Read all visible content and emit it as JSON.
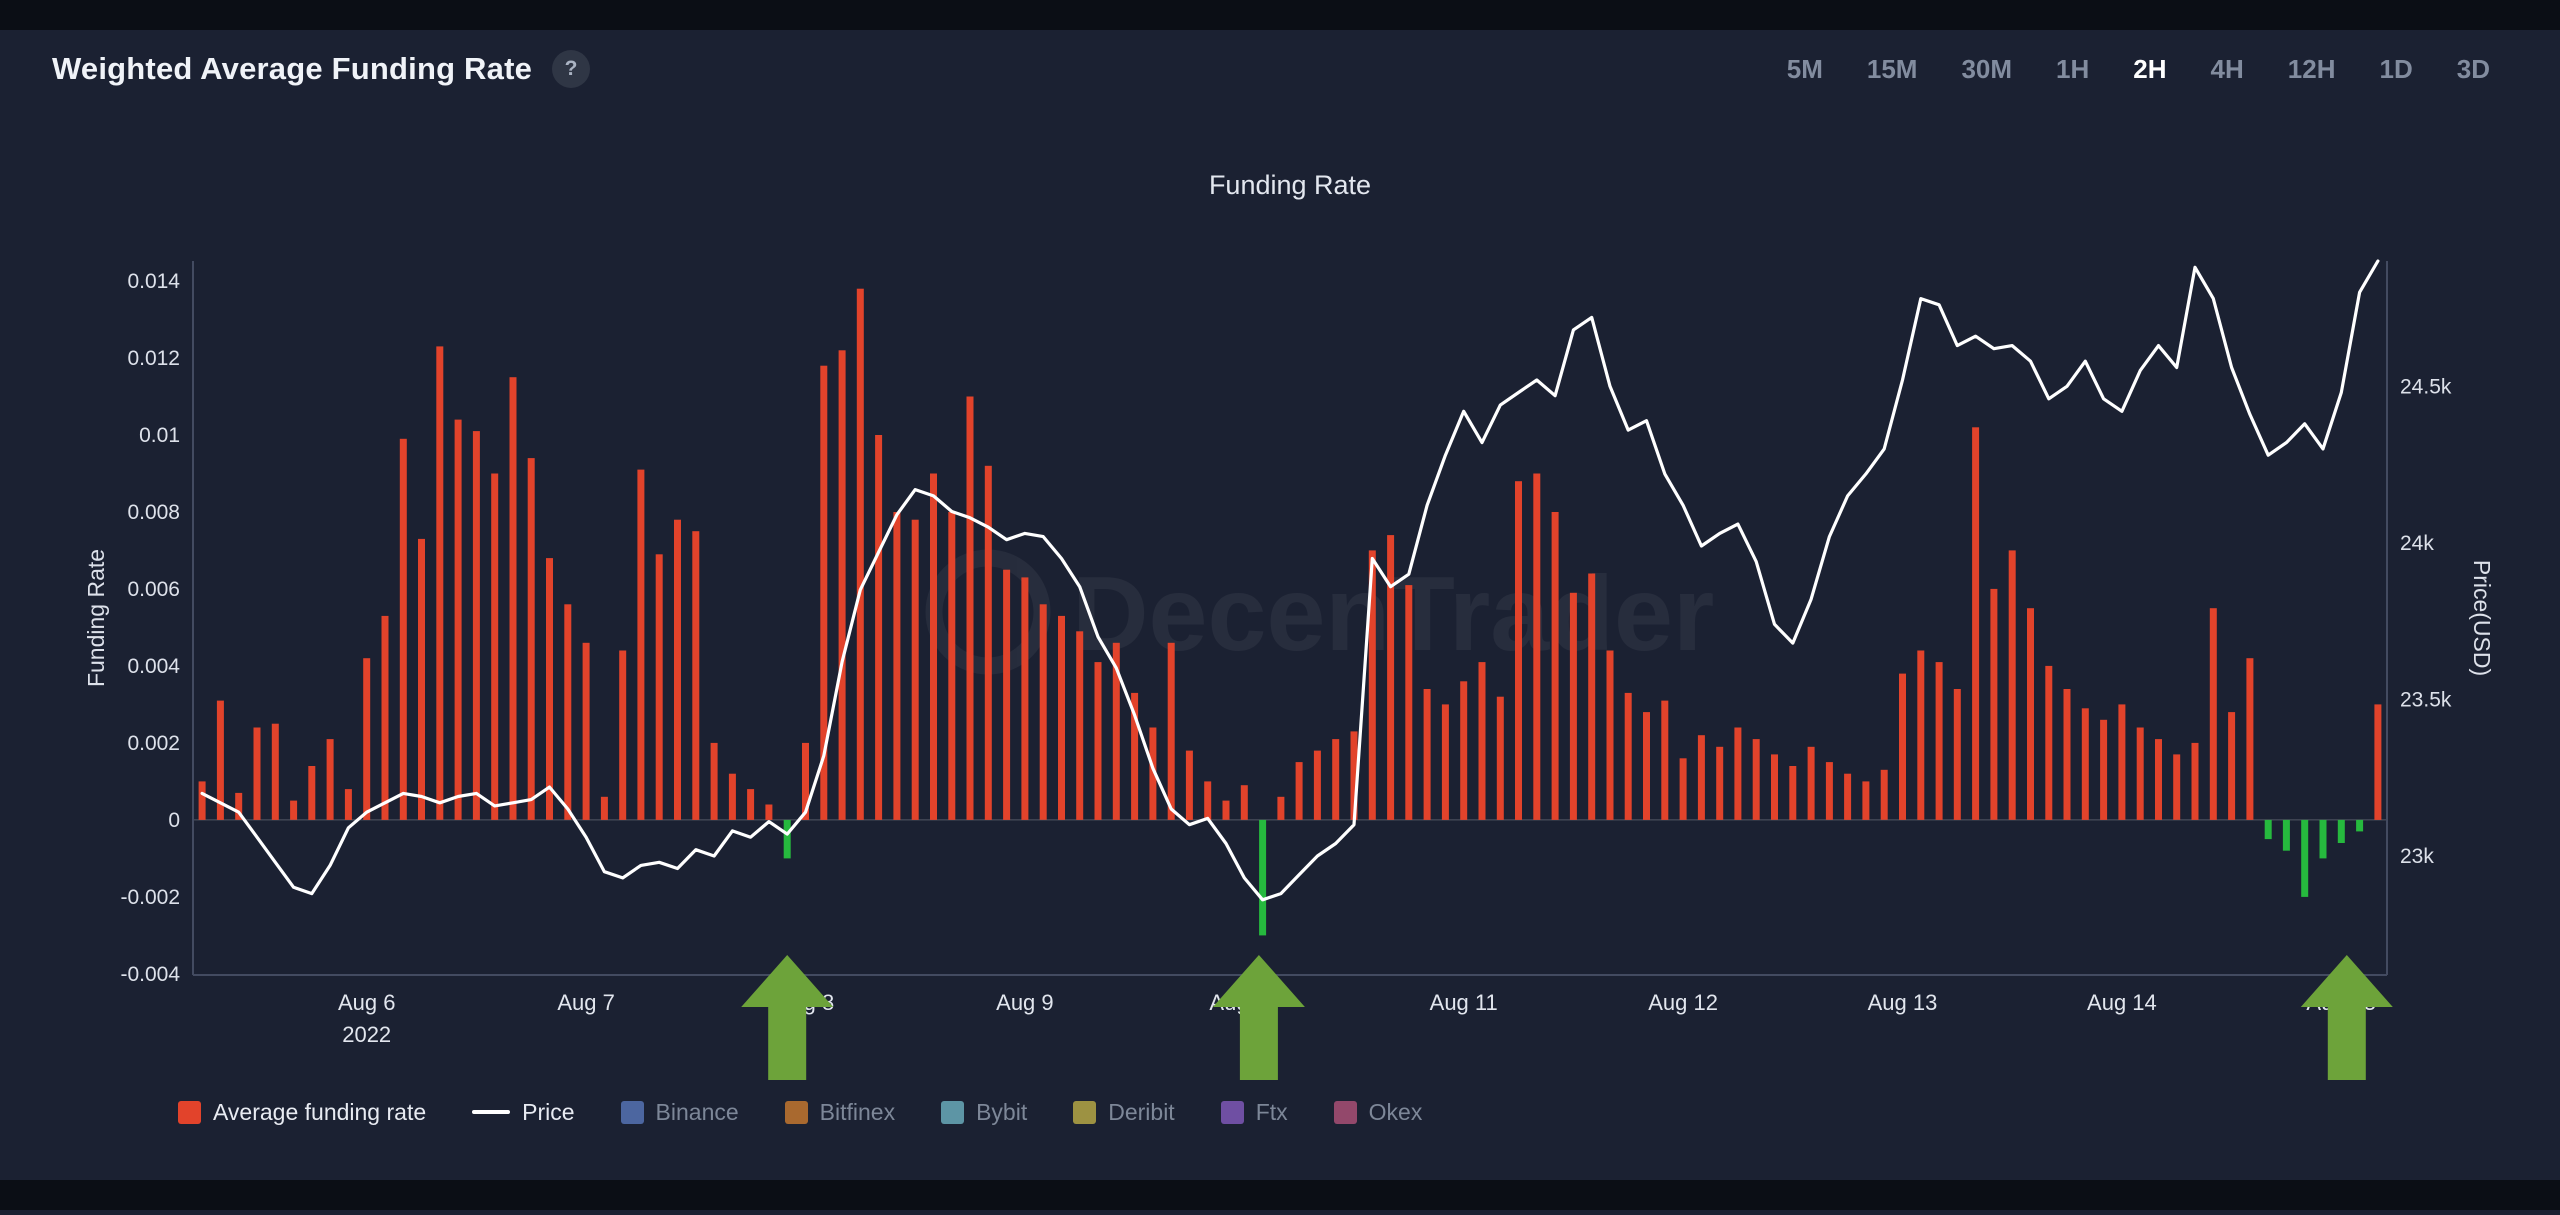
{
  "page": {
    "background": "#1b2132",
    "strip_color": "#0b0e15"
  },
  "header": {
    "title": "Weighted Average Funding Rate",
    "help_label": "?"
  },
  "timeframes": {
    "options": [
      "5M",
      "15M",
      "30M",
      "1H",
      "2H",
      "4H",
      "12H",
      "1D",
      "3D"
    ],
    "active": "2H"
  },
  "chart_data": {
    "type": "bar+line",
    "title": "Funding Rate",
    "watermark": "DecenTrader",
    "interval": "2H",
    "left_axis": {
      "label": "Funding Rate",
      "min": -0.00403,
      "max": 0.01452,
      "ticks": [
        {
          "label": "0.014",
          "value": 0.014
        },
        {
          "label": "0.012",
          "value": 0.012
        },
        {
          "label": "0.01",
          "value": 0.01
        },
        {
          "label": "0.008",
          "value": 0.008
        },
        {
          "label": "0.006",
          "value": 0.006
        },
        {
          "label": "0.004",
          "value": 0.004
        },
        {
          "label": "0.002",
          "value": 0.002
        },
        {
          "label": "0",
          "value": 0
        },
        {
          "label": "-0.002",
          "value": -0.002
        },
        {
          "label": "-0.004",
          "value": -0.004
        }
      ]
    },
    "right_axis": {
      "label": "Price(USD)",
      "min": 22.62,
      "max": 24.9,
      "ticks": [
        {
          "label": "24.5k",
          "value": 24.5
        },
        {
          "label": "24k",
          "value": 24.0
        },
        {
          "label": "23.5k",
          "value": 23.5
        },
        {
          "label": "23k",
          "value": 23.0
        }
      ]
    },
    "x_axis": {
      "day_labels": [
        {
          "label": "Aug 6",
          "sub": "2022",
          "index": 9
        },
        {
          "label": "Aug 7",
          "index": 21
        },
        {
          "label": "Aug 8",
          "index": 33
        },
        {
          "label": "Aug 9",
          "index": 45
        },
        {
          "label": "Aug 10",
          "index": 57
        },
        {
          "label": "Aug 11",
          "index": 69
        },
        {
          "label": "Aug 12",
          "index": 81
        },
        {
          "label": "Aug 13",
          "index": 93
        },
        {
          "label": "Aug 14",
          "index": 105
        },
        {
          "label": "Aug 15",
          "index": 117
        }
      ]
    },
    "funding_series": {
      "name": "Average funding rate",
      "color": "#e2432b",
      "neg_color": "#26b93e",
      "values": [
        0.001,
        0.0031,
        0.0007,
        0.0024,
        0.0025,
        0.0005,
        0.0014,
        0.0021,
        0.0008,
        0.0042,
        0.0053,
        0.0099,
        0.0073,
        0.0123,
        0.0104,
        0.0101,
        0.009,
        0.0115,
        0.0094,
        0.0068,
        0.0056,
        0.0046,
        0.0006,
        0.0044,
        0.0091,
        0.0069,
        0.0078,
        0.0075,
        0.002,
        0.0012,
        0.0008,
        0.0004,
        -0.001,
        0.002,
        0.0118,
        0.0122,
        0.0138,
        0.01,
        0.008,
        0.0078,
        0.009,
        0.008,
        0.011,
        0.0092,
        0.0065,
        0.0063,
        0.0056,
        0.0053,
        0.0049,
        0.0041,
        0.0046,
        0.0033,
        0.0024,
        0.0046,
        0.0018,
        0.001,
        0.0005,
        0.0009,
        -0.003,
        0.0006,
        0.0015,
        0.0018,
        0.0021,
        0.0023,
        0.007,
        0.0074,
        0.0061,
        0.0034,
        0.003,
        0.0036,
        0.0041,
        0.0032,
        0.0088,
        0.009,
        0.008,
        0.0059,
        0.0064,
        0.0044,
        0.0033,
        0.0028,
        0.0031,
        0.0016,
        0.0022,
        0.0019,
        0.0024,
        0.0021,
        0.0017,
        0.0014,
        0.0019,
        0.0015,
        0.0012,
        0.001,
        0.0013,
        0.0038,
        0.0044,
        0.0041,
        0.0034,
        0.0102,
        0.006,
        0.007,
        0.0055,
        0.004,
        0.0034,
        0.0029,
        0.0026,
        0.003,
        0.0024,
        0.0021,
        0.0017,
        0.002,
        0.0055,
        0.0028,
        0.0042,
        -0.0005,
        -0.0008,
        -0.002,
        -0.001,
        -0.0006,
        -0.0003,
        0.003
      ]
    },
    "price_series": {
      "name": "Price",
      "color": "#ffffff",
      "unit": "k USD",
      "values": [
        23.2,
        23.17,
        23.14,
        23.06,
        22.98,
        22.9,
        22.88,
        22.97,
        23.09,
        23.14,
        23.17,
        23.2,
        23.19,
        23.17,
        23.19,
        23.2,
        23.16,
        23.17,
        23.18,
        23.22,
        23.15,
        23.06,
        22.95,
        22.93,
        22.97,
        22.98,
        22.96,
        23.02,
        23.0,
        23.08,
        23.06,
        23.11,
        23.07,
        23.14,
        23.32,
        23.62,
        23.85,
        23.97,
        24.09,
        24.17,
        24.15,
        24.1,
        24.08,
        24.05,
        24.01,
        24.03,
        24.02,
        23.95,
        23.86,
        23.7,
        23.6,
        23.45,
        23.28,
        23.15,
        23.1,
        23.12,
        23.04,
        22.93,
        22.86,
        22.88,
        22.94,
        23.0,
        23.04,
        23.1,
        23.95,
        23.86,
        23.9,
        24.12,
        24.28,
        24.42,
        24.32,
        24.44,
        24.48,
        24.52,
        24.47,
        24.68,
        24.72,
        24.5,
        24.36,
        24.39,
        24.22,
        24.12,
        23.99,
        24.03,
        24.06,
        23.94,
        23.74,
        23.68,
        23.82,
        24.02,
        24.15,
        24.22,
        24.3,
        24.52,
        24.78,
        24.76,
        24.63,
        24.66,
        24.62,
        24.63,
        24.58,
        24.46,
        24.5,
        24.58,
        24.46,
        24.42,
        24.55,
        24.63,
        24.56,
        24.88,
        24.78,
        24.56,
        24.41,
        24.28,
        24.32,
        24.38,
        24.3,
        24.48,
        24.8,
        24.9
      ]
    },
    "annotations": {
      "arrows": {
        "color": "#6da33a",
        "direction": "up",
        "indices": [
          32,
          57.8,
          117.3
        ]
      }
    }
  },
  "legend": {
    "items": [
      {
        "label": "Average funding rate",
        "swatch": "square",
        "color": "#e2432b",
        "active": true
      },
      {
        "label": "Price",
        "swatch": "line",
        "color": "#ffffff",
        "active": true
      },
      {
        "label": "Binance",
        "swatch": "square",
        "color": "#4c66a0",
        "active": false
      },
      {
        "label": "Bitfinex",
        "swatch": "square",
        "color": "#a9692f",
        "active": false
      },
      {
        "label": "Bybit",
        "swatch": "square",
        "color": "#5d95a5",
        "active": false
      },
      {
        "label": "Deribit",
        "swatch": "square",
        "color": "#9d9242",
        "active": false
      },
      {
        "label": "Ftx",
        "swatch": "square",
        "color": "#6f4fa3",
        "active": false
      },
      {
        "label": "Okex",
        "swatch": "square",
        "color": "#93486b",
        "active": false
      }
    ]
  }
}
